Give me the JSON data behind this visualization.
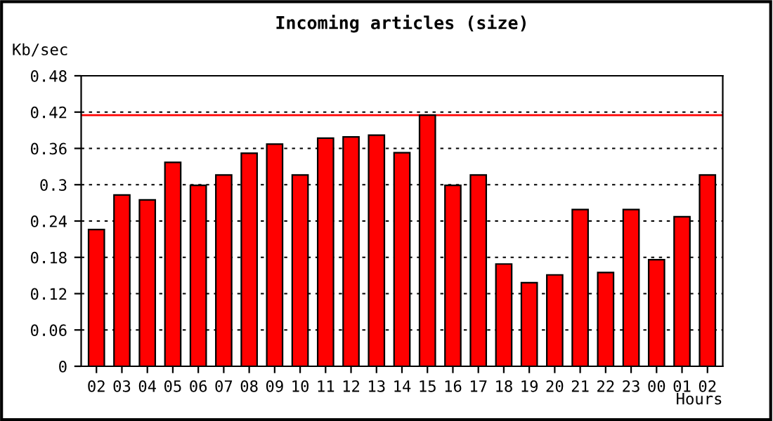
{
  "chart_data": {
    "type": "bar",
    "title": "Incoming articles (size)",
    "ylabel": "Kb/sec",
    "xlabel": "Hours",
    "categories": [
      "02",
      "03",
      "04",
      "05",
      "06",
      "07",
      "08",
      "09",
      "10",
      "11",
      "12",
      "13",
      "14",
      "15",
      "16",
      "17",
      "18",
      "19",
      "20",
      "21",
      "22",
      "23",
      "00",
      "01",
      "02"
    ],
    "values": [
      0.226,
      0.283,
      0.275,
      0.337,
      0.299,
      0.316,
      0.352,
      0.367,
      0.316,
      0.377,
      0.379,
      0.382,
      0.353,
      0.415,
      0.299,
      0.316,
      0.169,
      0.138,
      0.151,
      0.259,
      0.155,
      0.259,
      0.176,
      0.247,
      0.316
    ],
    "color": "#ff0000",
    "ylim": [
      0,
      0.48
    ],
    "yticks": [
      0,
      0.06,
      0.12,
      0.18,
      0.24,
      0.3,
      0.36,
      0.42,
      0.48
    ],
    "ref_lines": [
      {
        "axis": "y",
        "value": 0.415,
        "color": "#ff0000",
        "line_style": "solid"
      }
    ],
    "grid": "y"
  }
}
